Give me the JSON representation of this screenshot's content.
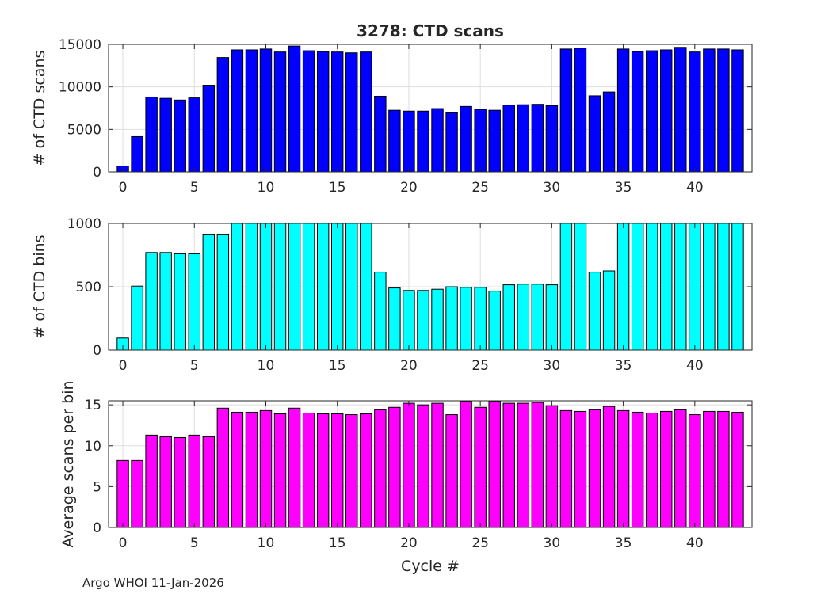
{
  "footer": "Argo WHOI 11-Jan-2026",
  "chart_data": [
    {
      "type": "bar",
      "title": "3278: CTD scans",
      "xlabel": "",
      "ylabel": "# of CTD scans",
      "color": "#0000ff",
      "xlim": [
        -1,
        44
      ],
      "ylim": [
        0,
        15000
      ],
      "xticks": [
        0,
        5,
        10,
        15,
        20,
        25,
        30,
        35,
        40
      ],
      "yticks": [
        0,
        5000,
        10000,
        15000
      ],
      "grid": true,
      "x": [
        0,
        1,
        2,
        3,
        4,
        5,
        6,
        7,
        8,
        9,
        10,
        11,
        12,
        13,
        14,
        15,
        16,
        17,
        18,
        19,
        20,
        21,
        22,
        23,
        24,
        25,
        26,
        27,
        28,
        29,
        30,
        31,
        32,
        33,
        34,
        35,
        36,
        37,
        38,
        39,
        40,
        41,
        42,
        43
      ],
      "values": [
        700,
        4150,
        8800,
        8650,
        8450,
        8700,
        10200,
        13450,
        14350,
        14350,
        14450,
        14100,
        14800,
        14250,
        14150,
        14100,
        14000,
        14100,
        8900,
        7250,
        7150,
        7150,
        7450,
        6950,
        7700,
        7350,
        7250,
        7850,
        7900,
        7950,
        7800,
        14450,
        14550,
        8950,
        9400,
        14450,
        14150,
        14250,
        14350,
        14650,
        14100,
        14450,
        14450,
        14350
      ]
    },
    {
      "type": "bar",
      "title": "",
      "xlabel": "",
      "ylabel": "# of CTD bins",
      "color": "#00ffff",
      "xlim": [
        -1,
        44
      ],
      "ylim": [
        0,
        1000
      ],
      "xticks": [
        0,
        5,
        10,
        15,
        20,
        25,
        30,
        35,
        40
      ],
      "yticks": [
        0,
        500,
        1000
      ],
      "grid": true,
      "x": [
        0,
        1,
        2,
        3,
        4,
        5,
        6,
        7,
        8,
        9,
        10,
        11,
        12,
        13,
        14,
        15,
        16,
        17,
        18,
        19,
        20,
        21,
        22,
        23,
        24,
        25,
        26,
        27,
        28,
        29,
        30,
        31,
        32,
        33,
        34,
        35,
        36,
        37,
        38,
        39,
        40,
        41,
        42,
        43
      ],
      "values": [
        95,
        505,
        770,
        770,
        760,
        760,
        910,
        910,
        1000,
        1000,
        1000,
        1000,
        1000,
        1000,
        1000,
        1000,
        1000,
        1000,
        615,
        490,
        470,
        470,
        480,
        500,
        495,
        495,
        465,
        515,
        520,
        520,
        515,
        1000,
        1000,
        615,
        625,
        1000,
        1000,
        1000,
        1000,
        1000,
        1000,
        1000,
        1000,
        1000
      ]
    },
    {
      "type": "bar",
      "title": "",
      "xlabel": "Cycle #",
      "ylabel": "Average scans per bin",
      "color": "#ff00ff",
      "xlim": [
        -1,
        44
      ],
      "ylim": [
        0,
        15.5
      ],
      "xticks": [
        0,
        5,
        10,
        15,
        20,
        25,
        30,
        35,
        40
      ],
      "yticks": [
        0,
        5,
        10,
        15
      ],
      "grid": true,
      "x": [
        0,
        1,
        2,
        3,
        4,
        5,
        6,
        7,
        8,
        9,
        10,
        11,
        12,
        13,
        14,
        15,
        16,
        17,
        18,
        19,
        20,
        21,
        22,
        23,
        24,
        25,
        26,
        27,
        28,
        29,
        30,
        31,
        32,
        33,
        34,
        35,
        36,
        37,
        38,
        39,
        40,
        41,
        42,
        43
      ],
      "values": [
        8.2,
        8.2,
        11.3,
        11.1,
        11.0,
        11.3,
        11.1,
        14.6,
        14.1,
        14.1,
        14.3,
        13.9,
        14.6,
        14.0,
        13.9,
        13.9,
        13.8,
        13.9,
        14.4,
        14.7,
        15.2,
        15.0,
        15.2,
        13.8,
        15.4,
        14.7,
        15.4,
        15.2,
        15.2,
        15.3,
        14.9,
        14.3,
        14.2,
        14.4,
        14.8,
        14.3,
        14.1,
        14.0,
        14.2,
        14.4,
        13.8,
        14.2,
        14.2,
        14.1
      ]
    }
  ]
}
